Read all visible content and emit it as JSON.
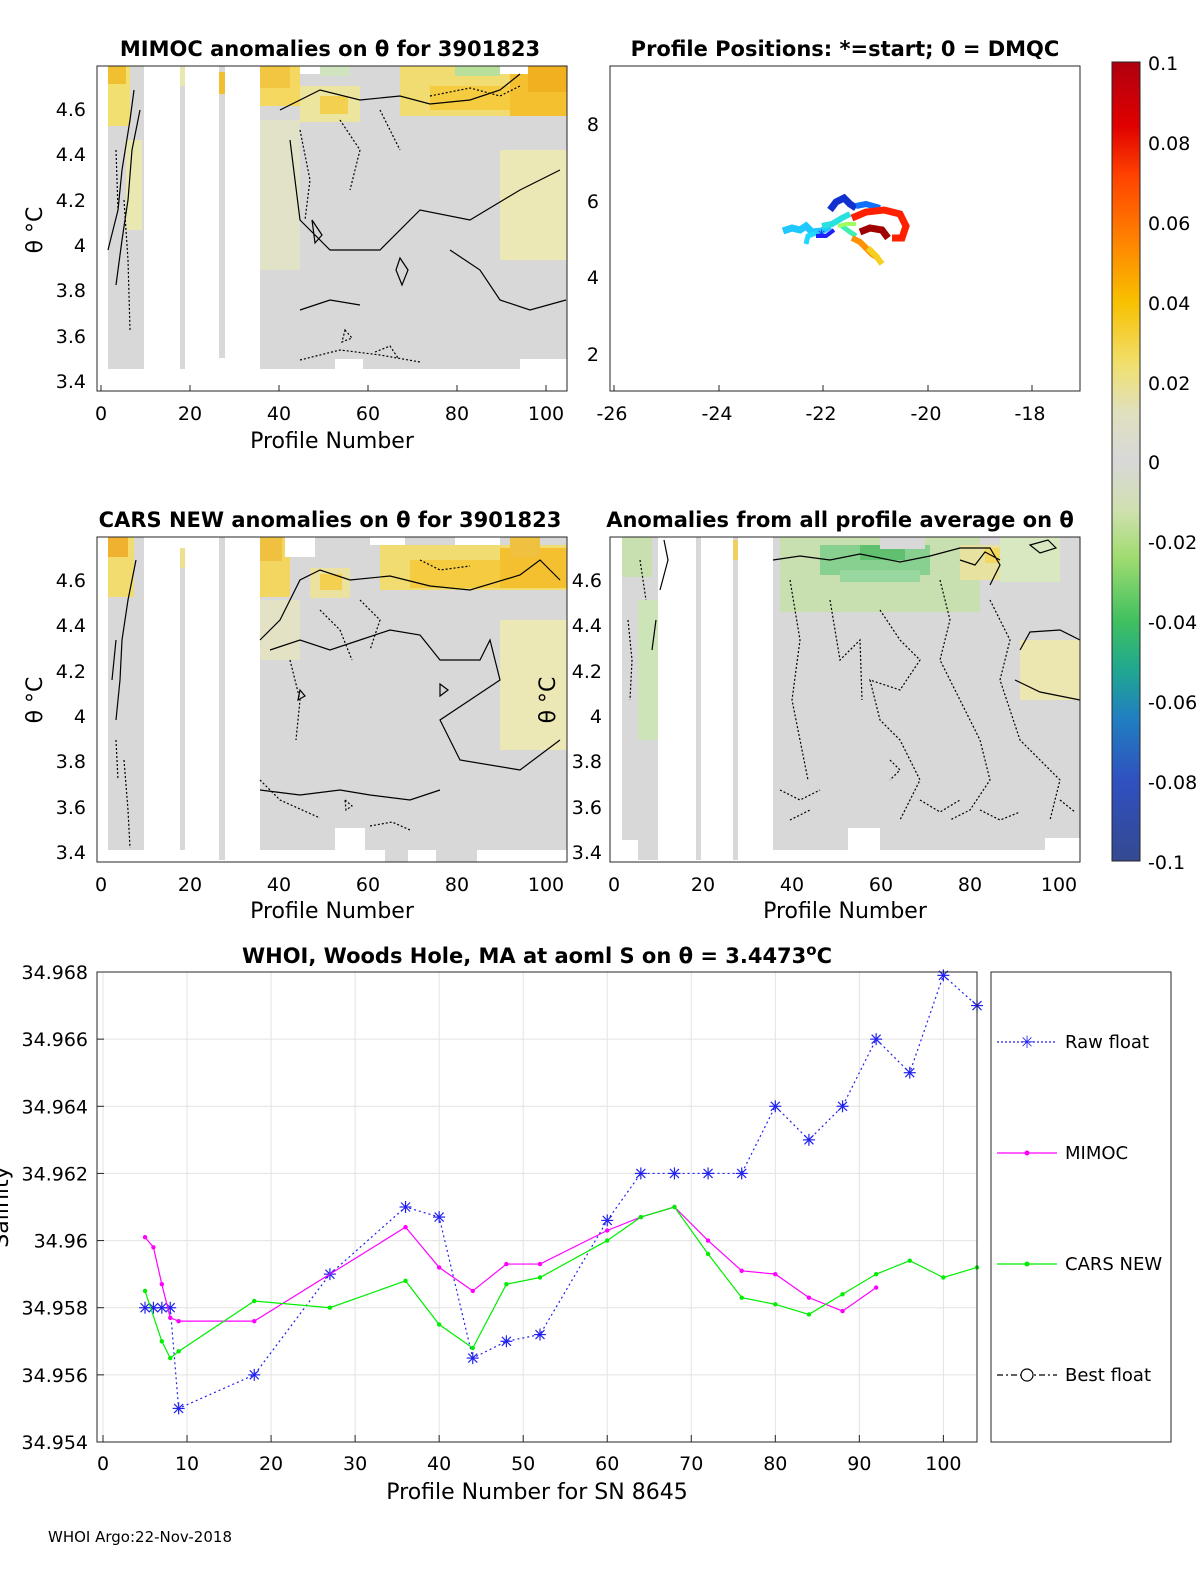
{
  "footer": "WHOI Argo:22-Nov-2018",
  "panels": {
    "mimoc": {
      "title": "MIMOC anomalies on θ  for 3901823",
      "xlabel": "Profile Number",
      "ylabel": "θ °C",
      "xticks": [
        "0",
        "20",
        "40",
        "60",
        "80",
        "100"
      ],
      "yticks": [
        "3.4",
        "3.6",
        "3.8",
        "4",
        "4.2",
        "4.4",
        "4.6"
      ]
    },
    "positions": {
      "title": "Profile Positions: *=start; 0 = DMQC",
      "xticks": [
        "-26",
        "-24",
        "-22",
        "-20",
        "-18"
      ],
      "yticks": [
        "2",
        "4",
        "6",
        "8"
      ]
    },
    "cars": {
      "title": "CARS NEW anomalies on θ for 3901823",
      "xlabel": "Profile Number",
      "ylabel": "θ °C",
      "xticks": [
        "0",
        "20",
        "40",
        "60",
        "80",
        "100"
      ],
      "yticks": [
        "3.4",
        "3.6",
        "3.8",
        "4",
        "4.2",
        "4.4",
        "4.6"
      ]
    },
    "avg": {
      "title": "Anomalies from all profile average on θ",
      "xlabel": "Profile Number",
      "ylabel": "θ °C",
      "xticks": [
        "0",
        "20",
        "40",
        "60",
        "80",
        "100"
      ],
      "yticks": [
        "3.4",
        "3.6",
        "3.8",
        "4",
        "4.2",
        "4.4",
        "4.6"
      ]
    }
  },
  "colorbar": {
    "ticks": [
      "0.1",
      "0.08",
      "0.06",
      "0.04",
      "0.02",
      "0",
      "-0.02",
      "-0.04",
      "-0.06",
      "-0.08",
      "-0.1"
    ],
    "colors": [
      "#c00000",
      "#ff7000",
      "#f5d000",
      "#e8e8b0",
      "#d8d8d8",
      "#a8dc80",
      "#3cc060",
      "#2090b0",
      "#3050c0",
      "#304080"
    ]
  },
  "chart_data": {
    "type": "line",
    "title": "WHOI, Woods Hole, MA at aoml S on θ = 3.4473",
    "title_sup": "o",
    "title_unit": "C",
    "xlabel": "Profile Number for SN 8645",
    "ylabel": "Salinity",
    "xlim": [
      0,
      104
    ],
    "ylim": [
      34.954,
      34.968
    ],
    "xticks": [
      "0",
      "10",
      "20",
      "30",
      "40",
      "50",
      "60",
      "70",
      "80",
      "90",
      "100"
    ],
    "yticks": [
      "34.954",
      "34.956",
      "34.958",
      "34.96",
      "34.962",
      "34.964",
      "34.966",
      "34.968"
    ],
    "series": [
      {
        "name": "Raw float",
        "color": "#2222ee",
        "style": "dotted",
        "marker": "asterisk",
        "x": [
          5,
          6,
          7,
          8,
          9,
          18,
          27,
          36,
          40,
          44,
          48,
          52,
          60,
          64,
          68,
          72,
          76,
          80,
          84,
          88,
          92,
          96,
          100,
          104
        ],
        "y": [
          34.958,
          34.958,
          34.958,
          34.958,
          34.955,
          34.956,
          34.959,
          34.961,
          34.9607,
          34.9565,
          34.957,
          34.9572,
          34.9606,
          34.962,
          34.962,
          34.962,
          34.962,
          34.964,
          34.963,
          34.964,
          34.966,
          34.965,
          34.9679,
          34.967
        ]
      },
      {
        "name": "MIMOC",
        "color": "#ff00ff",
        "style": "solid",
        "marker": "dot",
        "x": [
          5,
          6,
          7,
          8,
          9,
          18,
          36,
          40,
          44,
          48,
          52,
          60,
          64,
          68,
          72,
          76,
          80,
          84,
          88,
          92
        ],
        "y": [
          34.9601,
          34.9598,
          34.9587,
          34.9577,
          34.9576,
          34.9576,
          34.9604,
          34.9592,
          34.9585,
          34.9593,
          34.9593,
          34.9603,
          34.9607,
          34.961,
          34.96,
          34.9591,
          34.959,
          34.9583,
          34.9579,
          34.9586
        ]
      },
      {
        "name": "CARS NEW",
        "color": "#00ee00",
        "style": "solid",
        "marker": "dot",
        "x": [
          5,
          7,
          8,
          9,
          18,
          27,
          36,
          40,
          44,
          48,
          52,
          60,
          64,
          68,
          72,
          76,
          80,
          84,
          88,
          92,
          96,
          100,
          104
        ],
        "y": [
          34.9585,
          34.957,
          34.9565,
          34.9567,
          34.9582,
          34.958,
          34.9588,
          34.9575,
          34.9568,
          34.9587,
          34.9589,
          34.96,
          34.9607,
          34.961,
          34.9596,
          34.9583,
          34.9581,
          34.9578,
          34.9584,
          34.959,
          34.9594,
          34.9589,
          34.9592
        ]
      },
      {
        "name": "Best float",
        "color": "#000000",
        "style": "dashdot",
        "marker": "circle",
        "x": [],
        "y": []
      }
    ]
  }
}
